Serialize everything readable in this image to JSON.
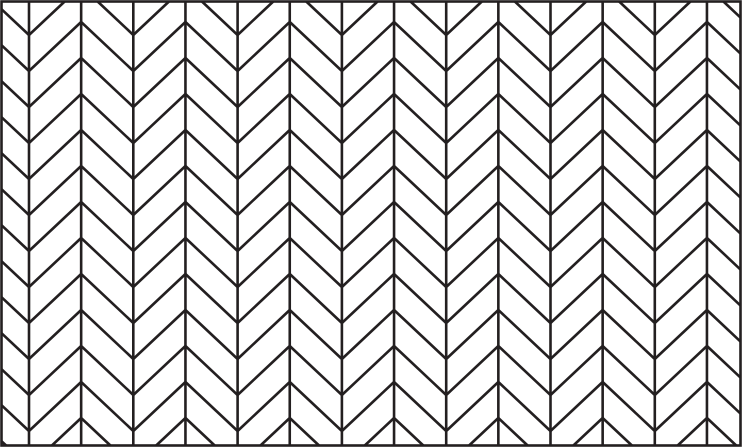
{
  "pattern": {
    "type": "herringbone",
    "stroke_color": "#231f20",
    "background_color": "#ffffff"
  }
}
